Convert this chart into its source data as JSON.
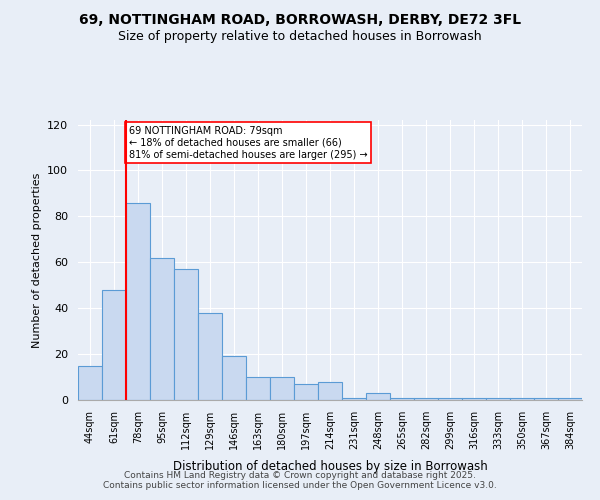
{
  "title": "69, NOTTINGHAM ROAD, BORROWASH, DERBY, DE72 3FL",
  "subtitle": "Size of property relative to detached houses in Borrowash",
  "xlabel": "Distribution of detached houses by size in Borrowash",
  "ylabel": "Number of detached properties",
  "categories": [
    "44sqm",
    "61sqm",
    "78sqm",
    "95sqm",
    "112sqm",
    "129sqm",
    "146sqm",
    "163sqm",
    "180sqm",
    "197sqm",
    "214sqm",
    "231sqm",
    "248sqm",
    "265sqm",
    "282sqm",
    "299sqm",
    "316sqm",
    "333sqm",
    "350sqm",
    "367sqm",
    "384sqm"
  ],
  "bar_heights": [
    15,
    48,
    86,
    62,
    57,
    38,
    19,
    10,
    10,
    7,
    8,
    1,
    3,
    1,
    1,
    1,
    1,
    1,
    1,
    1,
    1
  ],
  "bar_color": "#c9d9f0",
  "bar_edge_color": "#5b9bd5",
  "vline_x": 78,
  "vline_color": "red",
  "annotation_text": "69 NOTTINGHAM ROAD: 79sqm\n← 18% of detached houses are smaller (66)\n81% of semi-detached houses are larger (295) →",
  "annotation_box_color": "white",
  "annotation_box_edge": "red",
  "ylim": [
    0,
    122
  ],
  "yticks": [
    0,
    20,
    40,
    60,
    80,
    100,
    120
  ],
  "background_color": "#e8eef7",
  "footer_text": "Contains HM Land Registry data © Crown copyright and database right 2025.\nContains public sector information licensed under the Open Government Licence v3.0.",
  "bin_edges": [
    44,
    61,
    78,
    95,
    112,
    129,
    146,
    163,
    180,
    197,
    214,
    231,
    248,
    265,
    282,
    299,
    316,
    333,
    350,
    367,
    384,
    401
  ]
}
